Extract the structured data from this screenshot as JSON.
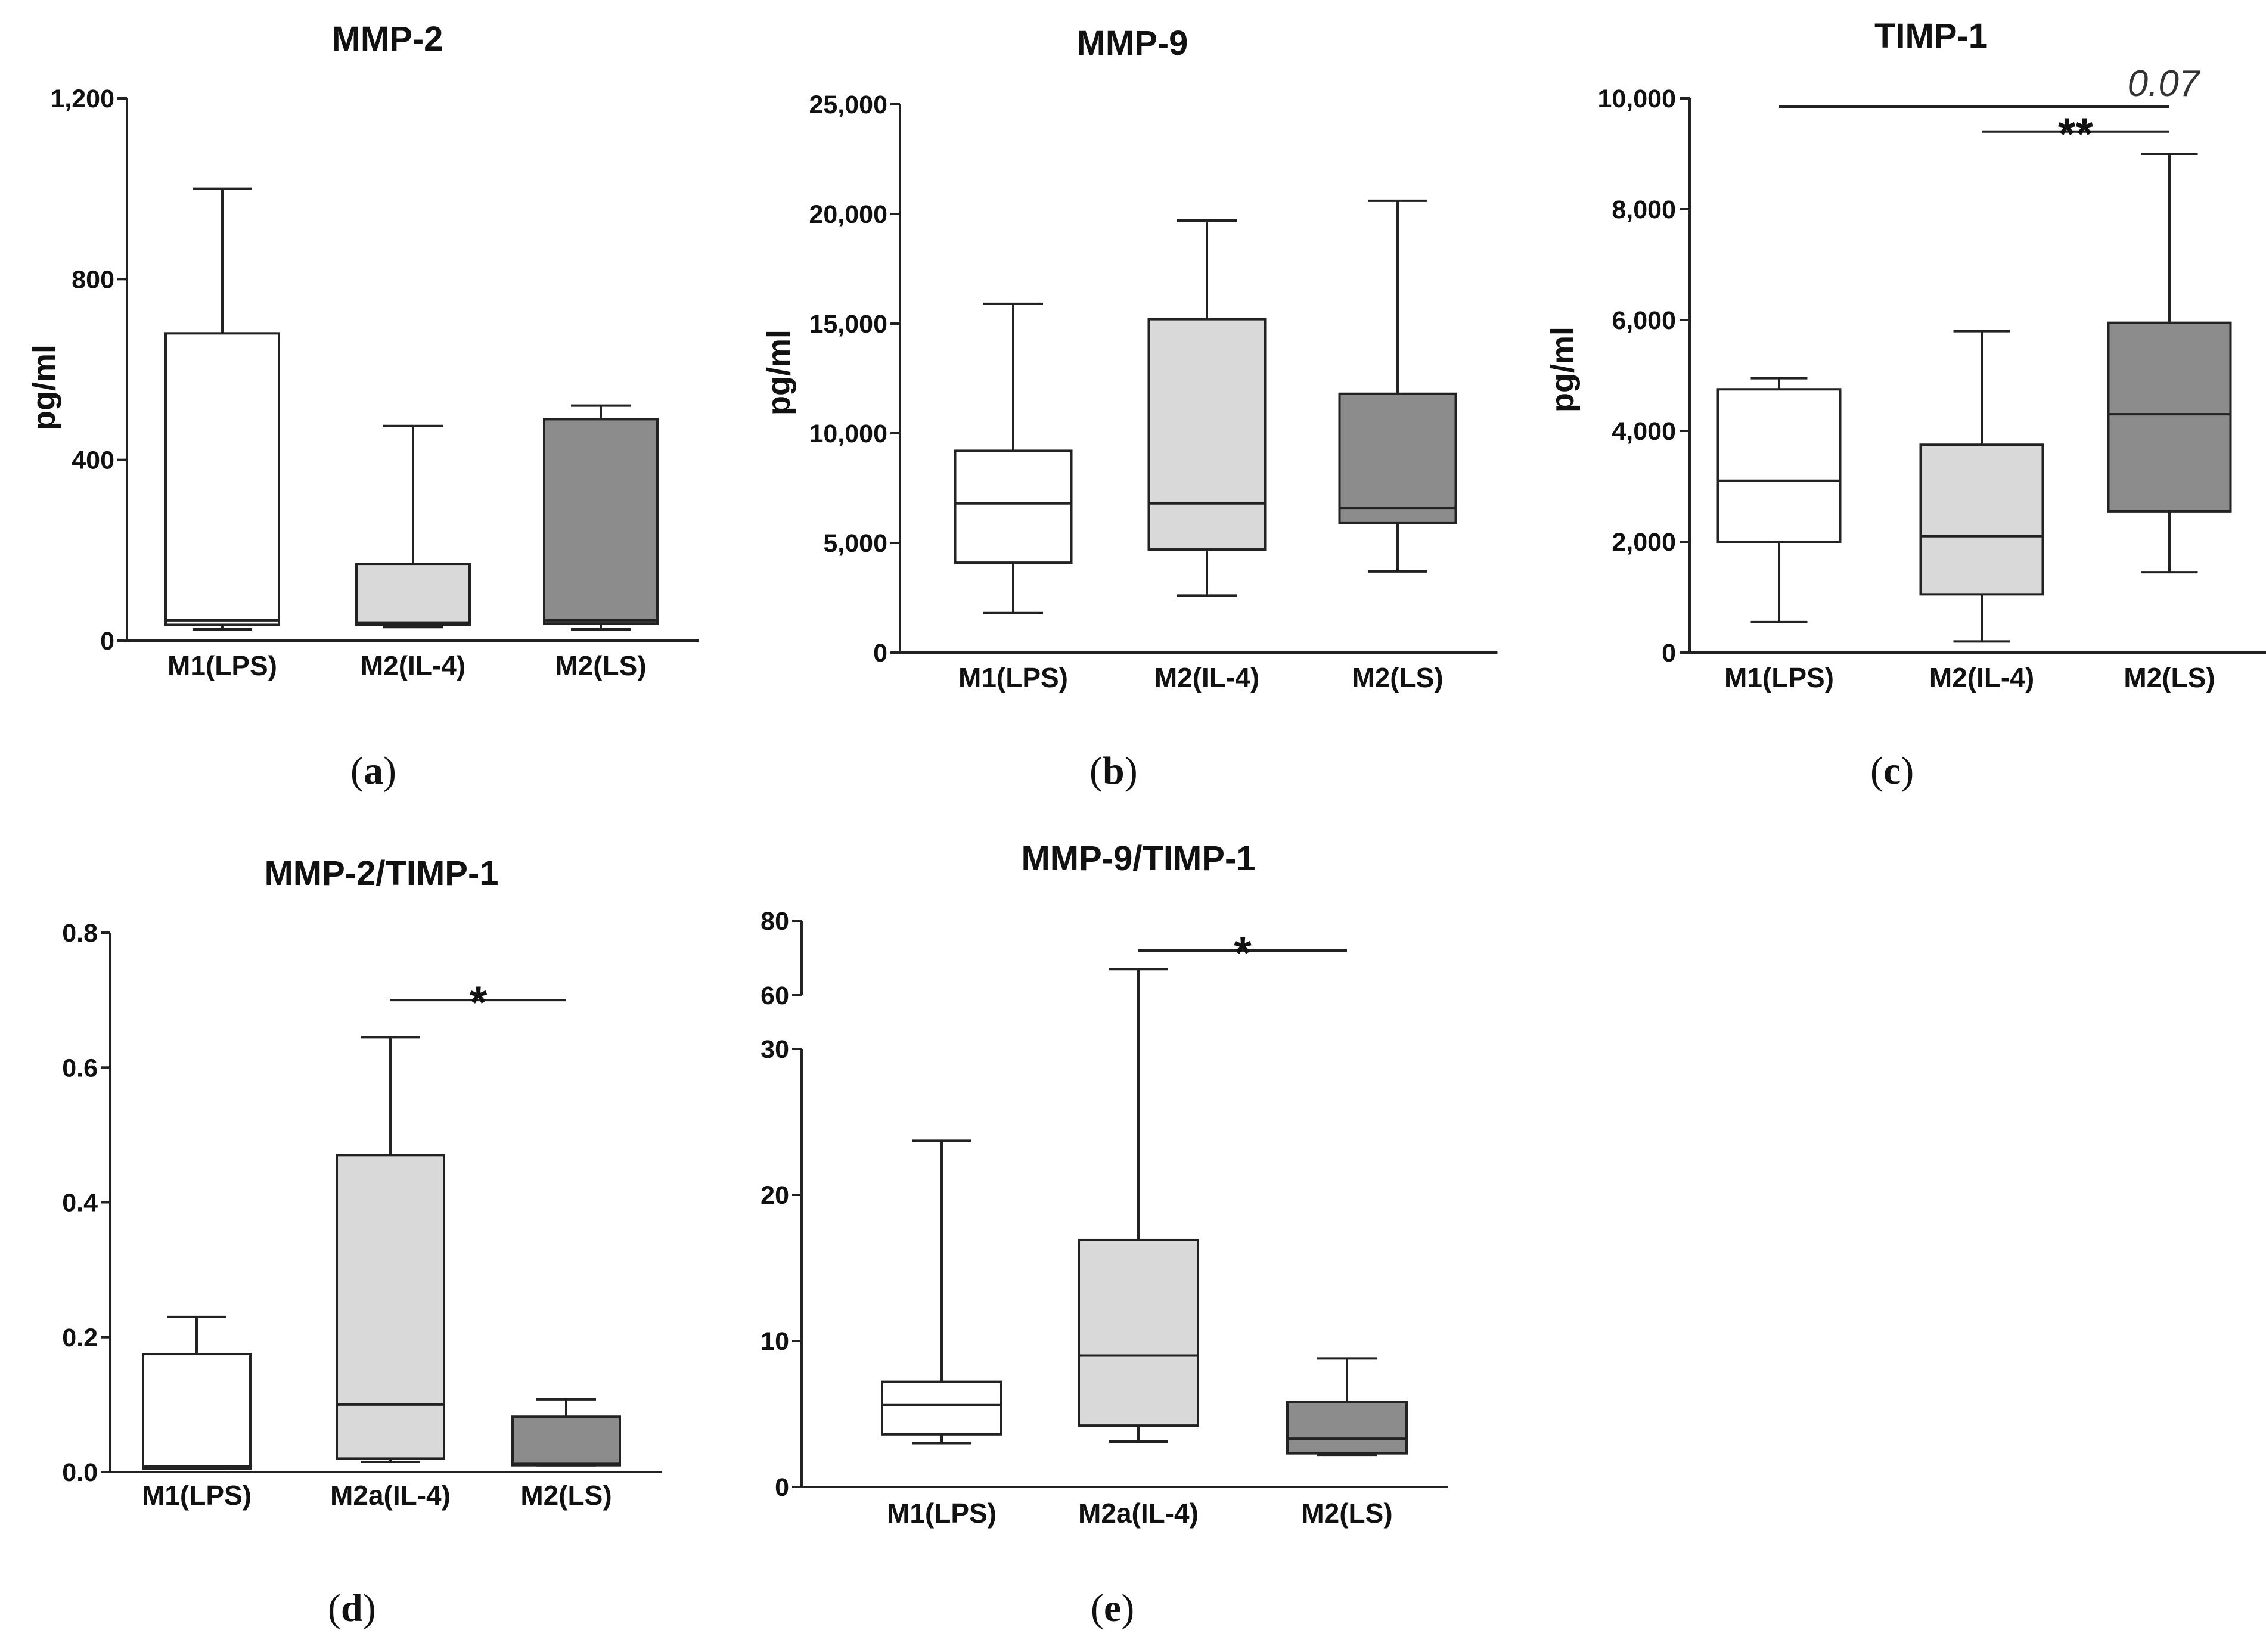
{
  "chart_data": [
    {
      "type": "boxplot",
      "label": "a",
      "title": "MMP-2",
      "ylabel": "pg/ml",
      "ylim": [
        0,
        1200
      ],
      "yticks": [
        0,
        400,
        800,
        1200
      ],
      "ytick_labels": [
        "0",
        "400",
        "800",
        "1,200"
      ],
      "categories": [
        "M1(LPS)",
        "M2(IL-4)",
        "M2(LS)"
      ],
      "fills": [
        "#ffffff",
        "#d9d9d9",
        "#8c8c8c"
      ],
      "boxes": [
        {
          "min": 25,
          "q1": 35,
          "median": 45,
          "q3": 680,
          "max": 1000
        },
        {
          "min": 30,
          "q1": 35,
          "median": 40,
          "q3": 170,
          "max": 475
        },
        {
          "min": 25,
          "q1": 38,
          "median": 45,
          "q3": 490,
          "max": 520
        }
      ],
      "annotations": []
    },
    {
      "type": "boxplot",
      "label": "b",
      "title": "MMP-9",
      "ylabel": "pg/ml",
      "ylim": [
        0,
        25000
      ],
      "yticks": [
        0,
        5000,
        10000,
        15000,
        20000,
        25000
      ],
      "ytick_labels": [
        "0",
        "5,000",
        "10,000",
        "15,000",
        "20,000",
        "25,000"
      ],
      "categories": [
        "M1(LPS)",
        "M2(IL-4)",
        "M2(LS)"
      ],
      "fills": [
        "#ffffff",
        "#d9d9d9",
        "#8c8c8c"
      ],
      "boxes": [
        {
          "min": 1800,
          "q1": 4100,
          "median": 6800,
          "q3": 9200,
          "max": 15900
        },
        {
          "min": 2600,
          "q1": 4700,
          "median": 6800,
          "q3": 15200,
          "max": 19700
        },
        {
          "min": 3700,
          "q1": 5900,
          "median": 6600,
          "q3": 11800,
          "max": 20600
        }
      ],
      "annotations": []
    },
    {
      "type": "boxplot",
      "label": "c",
      "title": "TIMP-1",
      "ylabel": "pg/ml",
      "ylim": [
        0,
        10000
      ],
      "yticks": [
        0,
        2000,
        4000,
        6000,
        8000,
        10000
      ],
      "ytick_labels": [
        "0",
        "2,000",
        "4,000",
        "6,000",
        "8,000",
        "10,000"
      ],
      "categories": [
        "M1(LPS)",
        "M2(IL-4)",
        "M2(LS)"
      ],
      "fills": [
        "#ffffff",
        "#d9d9d9",
        "#8c8c8c"
      ],
      "boxes": [
        {
          "min": 550,
          "q1": 2000,
          "median": 3100,
          "q3": 4750,
          "max": 4950
        },
        {
          "min": 200,
          "q1": 1050,
          "median": 2100,
          "q3": 3750,
          "max": 5800
        },
        {
          "min": 1450,
          "q1": 2550,
          "median": 4300,
          "q3": 5950,
          "max": 9000
        }
      ],
      "annotations": [
        {
          "from": 0,
          "to": 2,
          "y": 9850,
          "text": "0.07",
          "style": "p"
        },
        {
          "from": 1,
          "to": 2,
          "y": 9400,
          "text": "**",
          "style": "sig"
        }
      ]
    },
    {
      "type": "boxplot",
      "label": "d",
      "title": "MMP-2/TIMP-1",
      "ylabel": "",
      "ylim": [
        0,
        0.8
      ],
      "yticks": [
        0,
        0.2,
        0.4,
        0.6,
        0.8
      ],
      "ytick_labels": [
        "0.0",
        "0.2",
        "0.4",
        "0.6",
        "0.8"
      ],
      "categories": [
        "M1(LPS)",
        "M2a(IL-4)",
        "M2(LS)"
      ],
      "fills": [
        "#ffffff",
        "#d9d9d9",
        "#8c8c8c"
      ],
      "boxes": [
        {
          "min": 0.005,
          "q1": 0.005,
          "median": 0.008,
          "q3": 0.175,
          "max": 0.23
        },
        {
          "min": 0.015,
          "q1": 0.02,
          "median": 0.1,
          "q3": 0.47,
          "max": 0.645
        },
        {
          "min": 0.01,
          "q1": 0.01,
          "median": 0.012,
          "q3": 0.082,
          "max": 0.108
        }
      ],
      "annotations": [
        {
          "from": 1,
          "to": 2,
          "y": 0.7,
          "text": "*",
          "style": "sig"
        }
      ]
    },
    {
      "type": "boxplot",
      "label": "e",
      "title": "MMP-9/TIMP-1",
      "ylabel": "",
      "ylim": [
        0,
        80
      ],
      "axis_break": [
        30,
        60
      ],
      "yticks": [
        0,
        10,
        20,
        30,
        60,
        80
      ],
      "ytick_labels": [
        "0",
        "10",
        "20",
        "30",
        "60",
        "80"
      ],
      "categories": [
        "M1(LPS)",
        "M2a(IL-4)",
        "M2(LS)"
      ],
      "fills": [
        "#ffffff",
        "#d9d9d9",
        "#8c8c8c"
      ],
      "boxes": [
        {
          "min": 3,
          "q1": 3.6,
          "median": 5.6,
          "q3": 7.2,
          "max": 23.7
        },
        {
          "min": 3.1,
          "q1": 4.2,
          "median": 9,
          "q3": 16.9,
          "max": 67
        },
        {
          "min": 2.2,
          "q1": 2.3,
          "median": 3.3,
          "q3": 5.8,
          "max": 8.8
        }
      ],
      "annotations": [
        {
          "from": 1,
          "to": 2,
          "y": 72,
          "text": "*",
          "style": "sig"
        }
      ]
    }
  ]
}
